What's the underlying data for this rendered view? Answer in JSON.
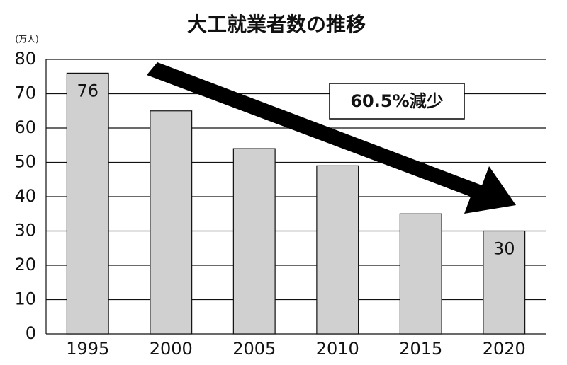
{
  "chart_data": {
    "type": "bar",
    "title": "大工就業者数の推移",
    "y_unit": "(万人)",
    "annotation": "60.5%減少",
    "categories": [
      "1995",
      "2000",
      "2005",
      "2010",
      "2015",
      "2020"
    ],
    "values": [
      76,
      65,
      54,
      49,
      35,
      30
    ],
    "value_labels": [
      "76",
      null,
      null,
      null,
      null,
      "30"
    ],
    "color": "#d0d0d0",
    "ylim": [
      0,
      80
    ],
    "yticks": [
      0,
      10,
      20,
      30,
      40,
      50,
      60,
      70,
      80
    ],
    "grid": true
  }
}
